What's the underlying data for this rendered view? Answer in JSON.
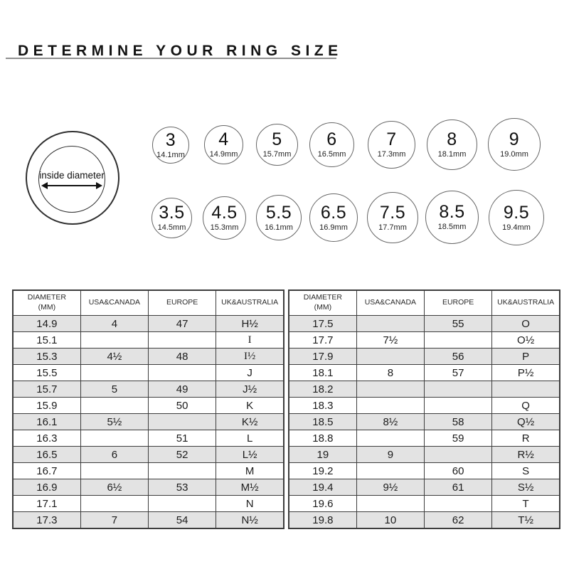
{
  "page": {
    "title": "DETERMINE YOUR RING SIZE"
  },
  "ring_diagram": {
    "label": "inside diameter"
  },
  "size_circles": {
    "row1": [
      {
        "size": "3",
        "diameter": "14.1mm"
      },
      {
        "size": "4",
        "diameter": "14.9mm"
      },
      {
        "size": "5",
        "diameter": "15.7mm"
      },
      {
        "size": "6",
        "diameter": "16.5mm"
      },
      {
        "size": "7",
        "diameter": "17.3mm"
      },
      {
        "size": "8",
        "diameter": "18.1mm"
      },
      {
        "size": "9",
        "diameter": "19.0mm"
      }
    ],
    "row2": [
      {
        "size": "3.5",
        "diameter": "14.5mm"
      },
      {
        "size": "4.5",
        "diameter": "15.3mm"
      },
      {
        "size": "5.5",
        "diameter": "16.1mm"
      },
      {
        "size": "6.5",
        "diameter": "16.9mm"
      },
      {
        "size": "7.5",
        "diameter": "17.7mm"
      },
      {
        "size": "8.5",
        "diameter": "18.5mm"
      },
      {
        "size": "9.5",
        "diameter": "19.4mm"
      }
    ]
  },
  "size_table": {
    "headers": [
      "DIAMETER\n(MM)",
      "USA&CANADA",
      "EUROPE",
      "UK&AUSTRALIA"
    ],
    "groups": [
      {
        "rows": [
          [
            "14.9",
            "4",
            "47",
            "H½"
          ],
          [
            "15.1",
            "",
            "",
            "I"
          ],
          [
            "15.3",
            "4½",
            "48",
            "I½"
          ],
          [
            "15.5",
            "",
            "",
            "J"
          ],
          [
            "15.7",
            "5",
            "49",
            "J½"
          ],
          [
            "15.9",
            "",
            "50",
            "K"
          ],
          [
            "16.1",
            "5½",
            "",
            "K½"
          ],
          [
            "16.3",
            "",
            "51",
            "L"
          ],
          [
            "16.5",
            "6",
            "52",
            "L½"
          ],
          [
            "16.7",
            "",
            "",
            "M"
          ],
          [
            "16.9",
            "6½",
            "53",
            "M½"
          ],
          [
            "17.1",
            "",
            "",
            "N"
          ],
          [
            "17.3",
            "7",
            "54",
            "N½"
          ]
        ]
      },
      {
        "rows": [
          [
            "17.5",
            "",
            "55",
            "O"
          ],
          [
            "17.7",
            "7½",
            "",
            "O½"
          ],
          [
            "17.9",
            "",
            "56",
            "P"
          ],
          [
            "18.1",
            "8",
            "57",
            "P½"
          ],
          [
            "18.2",
            "",
            "",
            ""
          ],
          [
            "18.3",
            "",
            "",
            "Q"
          ],
          [
            "18.5",
            "8½",
            "58",
            "Q½"
          ],
          [
            "18.8",
            "",
            "59",
            "R"
          ],
          [
            "19",
            "9",
            "",
            "R½"
          ],
          [
            "19.2",
            "",
            "60",
            "S"
          ],
          [
            "19.4",
            "9½",
            "61",
            "S½"
          ],
          [
            "19.6",
            "",
            "",
            "T"
          ],
          [
            "19.8",
            "10",
            "62",
            "T½"
          ]
        ]
      }
    ]
  },
  "colors": {
    "row_shade": "#e3e3e3",
    "table_border": "#3d3d3d",
    "circle_outline": "#666666",
    "title_underline": "#8f8f8f"
  }
}
